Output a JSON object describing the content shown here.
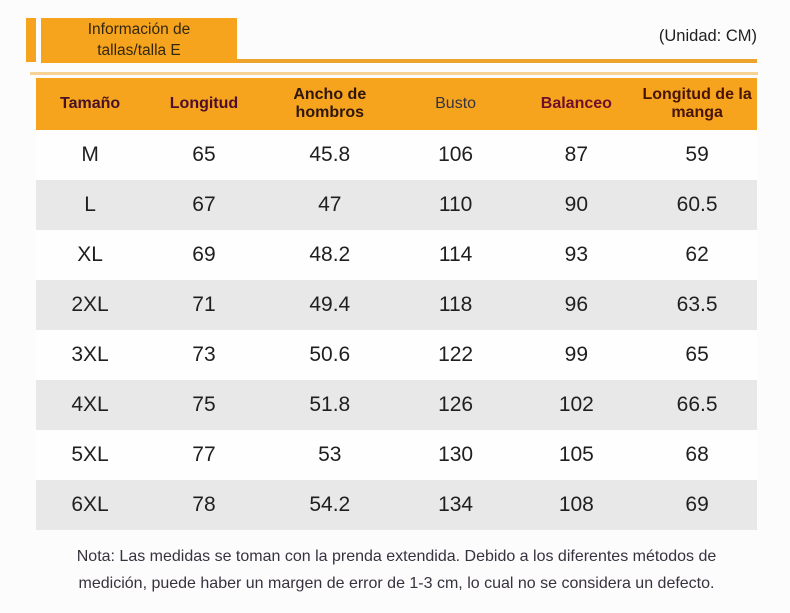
{
  "page": {
    "badge_line1": "Información de",
    "badge_line2": "tallas/talla E",
    "unit_label": "(Unidad: CM)"
  },
  "table": {
    "headers": [
      "Tamaño",
      "Longitud",
      "Ancho de hombros",
      "Busto",
      "Balanceo",
      "Longitud de la manga"
    ],
    "rows": [
      [
        "M",
        "65",
        "45.8",
        "106",
        "87",
        "59"
      ],
      [
        "L",
        "67",
        "47",
        "110",
        "90",
        "60.5"
      ],
      [
        "XL",
        "69",
        "48.2",
        "114",
        "93",
        "62"
      ],
      [
        "2XL",
        "71",
        "49.4",
        "118",
        "96",
        "63.5"
      ],
      [
        "3XL",
        "73",
        "50.6",
        "122",
        "99",
        "65"
      ],
      [
        "4XL",
        "75",
        "51.8",
        "126",
        "102",
        "66.5"
      ],
      [
        "5XL",
        "77",
        "53",
        "130",
        "105",
        "68"
      ],
      [
        "6XL",
        "78",
        "54.2",
        "134",
        "108",
        "69"
      ]
    ]
  },
  "note": {
    "line1": "Nota: Las medidas se toman con la prenda extendida. Debido a los diferentes métodos de",
    "line2": "medición, puede haber un margen de error de 1-3 cm, lo cual no se considera un defecto."
  },
  "colors": {
    "accent_orange": "#F6A41D",
    "rule_light_orange": "#F8D194",
    "row_alt_gray": "#E8E8E8",
    "header_text_maroon": "#4D0D2B",
    "cell_text": "#1F1F1F"
  }
}
